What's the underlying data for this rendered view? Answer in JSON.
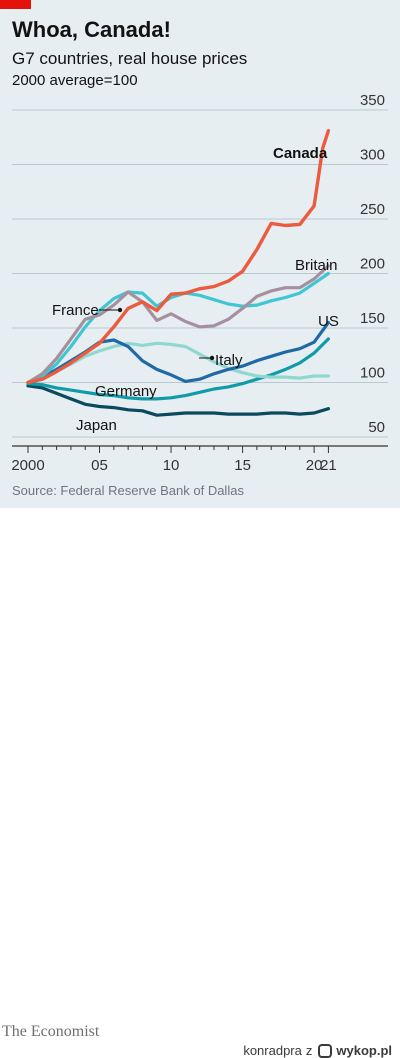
{
  "header": {
    "title": "Whoa, Canada!",
    "subtitle": "G7 countries, real house prices",
    "subtitle2": "2000 average=100"
  },
  "source": "Source: Federal Reserve Bank of Dallas",
  "footer": {
    "brand": "The Economist",
    "credit_user": "konradpra",
    "credit_sep": "z",
    "credit_site": "wykop.pl"
  },
  "chart_data": {
    "type": "line",
    "x_range": [
      2000,
      2021.25
    ],
    "ylim": [
      50,
      350
    ],
    "y_ticks": [
      50,
      100,
      150,
      200,
      250,
      300,
      350
    ],
    "x_ticks": [
      {
        "value": 2000,
        "label": "2000"
      },
      {
        "value": 2005,
        "label": "05"
      },
      {
        "value": 2010,
        "label": "10"
      },
      {
        "value": 2015,
        "label": "15"
      },
      {
        "value": 2020,
        "label": "20"
      },
      {
        "value": 2021,
        "label": "21"
      }
    ],
    "grid": true,
    "legend": "direct labels",
    "series": [
      {
        "name": "Japan",
        "color": "#0b4a5e",
        "width": 3.2,
        "points": [
          [
            2000,
            97
          ],
          [
            2001,
            95
          ],
          [
            2002,
            90
          ],
          [
            2003,
            85
          ],
          [
            2004,
            80
          ],
          [
            2005,
            78
          ],
          [
            2006,
            77
          ],
          [
            2007,
            75
          ],
          [
            2008,
            74
          ],
          [
            2009,
            70
          ],
          [
            2010,
            71
          ],
          [
            2011,
            72
          ],
          [
            2012,
            72
          ],
          [
            2013,
            72
          ],
          [
            2014,
            71
          ],
          [
            2015,
            71
          ],
          [
            2016,
            71
          ],
          [
            2017,
            72
          ],
          [
            2018,
            72
          ],
          [
            2019,
            71
          ],
          [
            2020,
            72
          ],
          [
            2021,
            76
          ]
        ]
      },
      {
        "name": "Germany",
        "color": "#0f9ba8",
        "width": 3.2,
        "points": [
          [
            2000,
            99
          ],
          [
            2001,
            98
          ],
          [
            2002,
            95
          ],
          [
            2003,
            93
          ],
          [
            2004,
            91
          ],
          [
            2005,
            89
          ],
          [
            2006,
            88
          ],
          [
            2007,
            86
          ],
          [
            2008,
            85
          ],
          [
            2009,
            85
          ],
          [
            2010,
            86
          ],
          [
            2011,
            88
          ],
          [
            2012,
            91
          ],
          [
            2013,
            94
          ],
          [
            2014,
            96
          ],
          [
            2015,
            99
          ],
          [
            2016,
            103
          ],
          [
            2017,
            107
          ],
          [
            2018,
            112
          ],
          [
            2019,
            118
          ],
          [
            2020,
            127
          ],
          [
            2021,
            140
          ]
        ]
      },
      {
        "name": "Italy",
        "color": "#8fd8cf",
        "width": 3.2,
        "points": [
          [
            2000,
            100
          ],
          [
            2001,
            104
          ],
          [
            2002,
            110
          ],
          [
            2003,
            117
          ],
          [
            2004,
            124
          ],
          [
            2005,
            129
          ],
          [
            2006,
            133
          ],
          [
            2007,
            136
          ],
          [
            2008,
            134
          ],
          [
            2009,
            136
          ],
          [
            2010,
            135
          ],
          [
            2011,
            133
          ],
          [
            2012,
            126
          ],
          [
            2013,
            119
          ],
          [
            2014,
            113
          ],
          [
            2015,
            109
          ],
          [
            2016,
            106
          ],
          [
            2017,
            105
          ],
          [
            2018,
            105
          ],
          [
            2019,
            104
          ],
          [
            2020,
            106
          ],
          [
            2021,
            106
          ]
        ]
      },
      {
        "name": "US",
        "color": "#1f6aa6",
        "width": 3.2,
        "points": [
          [
            2000,
            100
          ],
          [
            2001,
            105
          ],
          [
            2002,
            112
          ],
          [
            2003,
            120
          ],
          [
            2004,
            128
          ],
          [
            2005,
            137
          ],
          [
            2006,
            139
          ],
          [
            2007,
            133
          ],
          [
            2008,
            120
          ],
          [
            2009,
            112
          ],
          [
            2010,
            107
          ],
          [
            2011,
            101
          ],
          [
            2012,
            103
          ],
          [
            2013,
            108
          ],
          [
            2014,
            112
          ],
          [
            2015,
            115
          ],
          [
            2016,
            120
          ],
          [
            2017,
            124
          ],
          [
            2018,
            128
          ],
          [
            2019,
            131
          ],
          [
            2020,
            137
          ],
          [
            2021,
            155
          ]
        ]
      },
      {
        "name": "France",
        "color": "#3fc6d2",
        "width": 3.2,
        "points": [
          [
            2000,
            100
          ],
          [
            2001,
            106
          ],
          [
            2002,
            117
          ],
          [
            2003,
            133
          ],
          [
            2004,
            151
          ],
          [
            2005,
            166
          ],
          [
            2006,
            177
          ],
          [
            2007,
            183
          ],
          [
            2008,
            182
          ],
          [
            2009,
            170
          ],
          [
            2010,
            178
          ],
          [
            2011,
            182
          ],
          [
            2012,
            180
          ],
          [
            2013,
            176
          ],
          [
            2014,
            172
          ],
          [
            2015,
            170
          ],
          [
            2016,
            171
          ],
          [
            2017,
            175
          ],
          [
            2018,
            178
          ],
          [
            2019,
            182
          ],
          [
            2020,
            191
          ],
          [
            2021,
            200
          ]
        ]
      },
      {
        "name": "Britain",
        "color": "#a6909f",
        "width": 3.2,
        "points": [
          [
            2000,
            100
          ],
          [
            2001,
            108
          ],
          [
            2002,
            122
          ],
          [
            2003,
            140
          ],
          [
            2004,
            158
          ],
          [
            2005,
            162
          ],
          [
            2006,
            171
          ],
          [
            2007,
            183
          ],
          [
            2008,
            174
          ],
          [
            2009,
            157
          ],
          [
            2010,
            163
          ],
          [
            2011,
            156
          ],
          [
            2012,
            151
          ],
          [
            2013,
            152
          ],
          [
            2014,
            158
          ],
          [
            2015,
            168
          ],
          [
            2016,
            179
          ],
          [
            2017,
            184
          ],
          [
            2018,
            187
          ],
          [
            2019,
            187
          ],
          [
            2020,
            195
          ],
          [
            2021,
            207
          ]
        ]
      },
      {
        "name": "Canada",
        "color": "#ec5b3f",
        "width": 3.4,
        "points": [
          [
            2000,
            100
          ],
          [
            2001,
            103
          ],
          [
            2002,
            110
          ],
          [
            2003,
            118
          ],
          [
            2004,
            127
          ],
          [
            2005,
            136
          ],
          [
            2006,
            151
          ],
          [
            2007,
            168
          ],
          [
            2008,
            174
          ],
          [
            2009,
            166
          ],
          [
            2010,
            181
          ],
          [
            2011,
            182
          ],
          [
            2012,
            186
          ],
          [
            2013,
            188
          ],
          [
            2014,
            193
          ],
          [
            2015,
            202
          ],
          [
            2016,
            222
          ],
          [
            2017,
            246
          ],
          [
            2018,
            244
          ],
          [
            2019,
            245
          ],
          [
            2020,
            262
          ],
          [
            2020.6,
            315
          ],
          [
            2021,
            331
          ]
        ]
      }
    ],
    "labels": [
      {
        "series": "Canada",
        "text": "Canada",
        "bold": true
      },
      {
        "series": "Britain",
        "text": "Britain"
      },
      {
        "series": "France",
        "text": "France"
      },
      {
        "series": "US",
        "text": "US"
      },
      {
        "series": "Italy",
        "text": "Italy"
      },
      {
        "series": "Germany",
        "text": "Germany"
      },
      {
        "series": "Japan",
        "text": "Japan"
      }
    ]
  }
}
